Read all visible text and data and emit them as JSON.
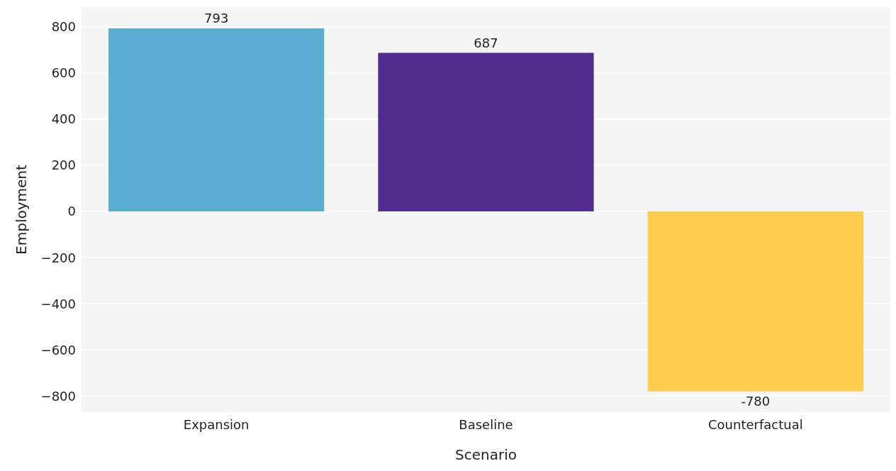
{
  "chart_data": {
    "type": "bar",
    "xlabel": "Scenario",
    "ylabel": "Employment",
    "categories": [
      "Expansion",
      "Baseline",
      "Counterfactual"
    ],
    "values": [
      793,
      687,
      -780
    ],
    "colors": [
      "#5aadd1",
      "#522d8f",
      "#ffcc4f"
    ],
    "ylim": [
      -870,
      885
    ],
    "yticks": [
      {
        "value": -800,
        "label": "−800"
      },
      {
        "value": -600,
        "label": "−600"
      },
      {
        "value": -400,
        "label": "−400"
      },
      {
        "value": -200,
        "label": "−200"
      },
      0,
      200,
      400,
      600,
      800
    ],
    "grid": "y",
    "data_labels": true
  }
}
